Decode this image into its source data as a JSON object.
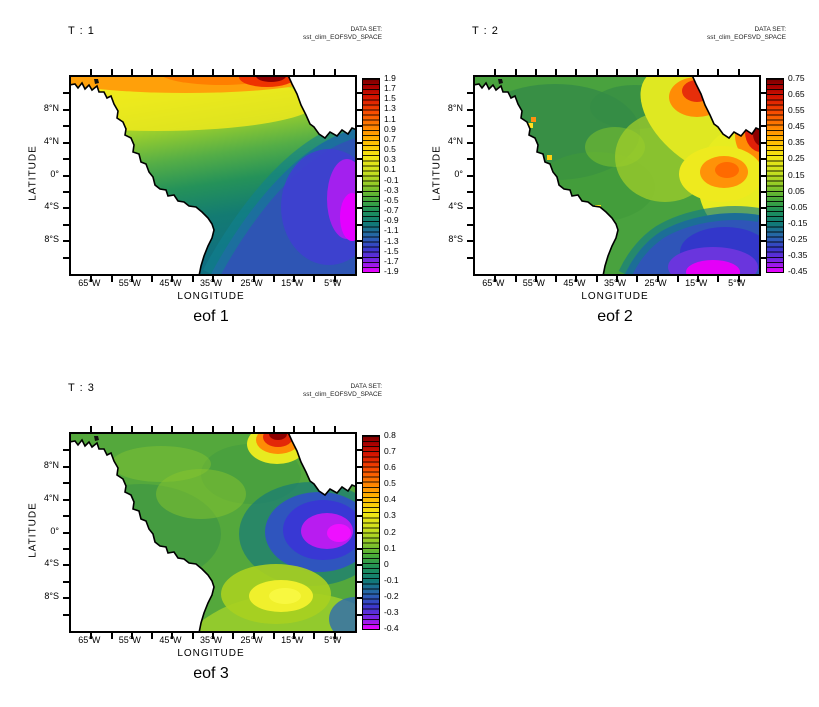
{
  "panels": [
    {
      "title": "T : 1",
      "dataset_label": "DATA SET:",
      "dataset_name": "sst_clim_EOFSVD_SPACE",
      "caption": "eof 1",
      "xlabel": "LONGITUDE",
      "ylabel": "LATITUDE",
      "x_ticks": [
        "65°W",
        "55°W",
        "45°W",
        "35°W",
        "25°W",
        "15°W",
        "5°W"
      ],
      "y_ticks": [
        "8°N",
        "4°N",
        "0°",
        "4°S",
        "8°S"
      ],
      "colorbar_labels": [
        "1.9",
        "1.7",
        "1.5",
        "1.3",
        "1.1",
        "0.9",
        "0.7",
        "0.5",
        "0.3",
        "0.1",
        "-0.1",
        "-0.3",
        "-0.5",
        "-0.7",
        "-0.9",
        "-1.1",
        "-1.3",
        "-1.5",
        "-1.7",
        "-1.9"
      ]
    },
    {
      "title": "T : 2",
      "dataset_label": "DATA SET:",
      "dataset_name": "sst_clim_EOFSVD_SPACE",
      "caption": "eof 2",
      "xlabel": "LONGITUDE",
      "ylabel": "LATITUDE",
      "x_ticks": [
        "65°W",
        "55°W",
        "45°W",
        "35°W",
        "25°W",
        "15°W",
        "5°W"
      ],
      "y_ticks": [
        "8°N",
        "4°N",
        "0°",
        "4°S",
        "8°S"
      ],
      "colorbar_labels": [
        "0.75",
        "0.65",
        "0.55",
        "0.45",
        "0.35",
        "0.25",
        "0.15",
        "0.05",
        "-0.05",
        "-0.15",
        "-0.25",
        "-0.35",
        "-0.45"
      ]
    },
    {
      "title": "T : 3",
      "dataset_label": "DATA SET:",
      "dataset_name": "sst_clim_EOFSVD_SPACE",
      "caption": "eof 3",
      "xlabel": "LONGITUDE",
      "ylabel": "LATITUDE",
      "x_ticks": [
        "65°W",
        "55°W",
        "45°W",
        "35°W",
        "25°W",
        "15°W",
        "5°W"
      ],
      "y_ticks": [
        "8°N",
        "4°N",
        "0°",
        "4°S",
        "8°S"
      ],
      "colorbar_labels": [
        "0.8",
        "0.7",
        "0.6",
        "0.5",
        "0.4",
        "0.3",
        "0.2",
        "0.1",
        "0",
        "-0.1",
        "-0.2",
        "-0.3",
        "-0.4"
      ]
    }
  ],
  "chart_data": [
    {
      "type": "heatmap",
      "title": "T : 1",
      "caption": "eof 1",
      "dataset": "sst_clim_EOFSVD_SPACE",
      "xlabel": "LONGITUDE",
      "ylabel": "LATITUDE",
      "x_tick_labels": [
        "65°W",
        "55°W",
        "45°W",
        "35°W",
        "25°W",
        "15°W",
        "5°W"
      ],
      "y_tick_labels": [
        "8°N",
        "4°N",
        "0°",
        "4°S",
        "8°S"
      ],
      "x_range": [
        "70°W",
        "0°"
      ],
      "y_range": [
        "12°S",
        "12°N"
      ],
      "colorbar": {
        "min": -1.9,
        "max": 1.9,
        "step": 0.2,
        "labels": [
          1.9,
          1.7,
          1.5,
          1.3,
          1.1,
          0.9,
          0.7,
          0.5,
          0.3,
          0.1,
          -0.1,
          -0.3,
          -0.5,
          -0.7,
          -0.9,
          -1.1,
          -1.3,
          -1.5,
          -1.7,
          -1.9
        ]
      },
      "palette": "rainbow: dark-red (max) → orange → yellow → green → teal → blue → magenta (min)",
      "features": [
        "positive band (yellow-orange ~0.9 to 1.3) along northern edge ~10-12°N",
        "maximum (dark red ~1.9) at top near 15°W by NW African coast",
        "zero-line green band crossing diagonally mid-basin",
        "broad negative pool (blue ~-1.0) over SE quadrant",
        "minimum (magenta ~-1.7 to -1.9) near 2-6°S at eastern edge"
      ]
    },
    {
      "type": "heatmap",
      "title": "T : 2",
      "caption": "eof 2",
      "dataset": "sst_clim_EOFSVD_SPACE",
      "xlabel": "LONGITUDE",
      "ylabel": "LATITUDE",
      "x_tick_labels": [
        "65°W",
        "55°W",
        "45°W",
        "35°W",
        "25°W",
        "15°W",
        "5°W"
      ],
      "y_tick_labels": [
        "8°N",
        "4°N",
        "0°",
        "4°S",
        "8°S"
      ],
      "x_range": [
        "70°W",
        "0°"
      ],
      "y_range": [
        "12°S",
        "12°N"
      ],
      "colorbar": {
        "min": -0.45,
        "max": 0.75,
        "step": 0.1,
        "labels": [
          0.75,
          0.65,
          0.55,
          0.45,
          0.35,
          0.25,
          0.15,
          0.05,
          -0.05,
          -0.15,
          -0.25,
          -0.35,
          -0.45
        ]
      },
      "palette": "rainbow: dark-red (max) → orange → yellow → green → teal → blue → magenta (min)",
      "features": [
        "mostly near-zero green over western/central basin",
        "positive maxima (red/orange ~0.55-0.75) near 15°W 10°N and at eastern edge ~4°N",
        "orange cell (~0.45) near 9°W 0°",
        "negative pool (blue) south of ~4°S east of 30°W",
        "minimum (magenta ~-0.45) near 12°S 12°W at bottom edge"
      ]
    },
    {
      "type": "heatmap",
      "title": "T : 3",
      "caption": "eof 3",
      "dataset": "sst_clim_EOFSVD_SPACE",
      "xlabel": "LONGITUDE",
      "ylabel": "LATITUDE",
      "x_tick_labels": [
        "65°W",
        "55°W",
        "45°W",
        "35°W",
        "25°W",
        "15°W",
        "5°W"
      ],
      "y_tick_labels": [
        "8°N",
        "4°N",
        "0°",
        "4°S",
        "8°S"
      ],
      "x_range": [
        "70°W",
        "0°"
      ],
      "y_range": [
        "12°S",
        "12°N"
      ],
      "colorbar": {
        "min": -0.4,
        "max": 0.8,
        "step": 0.1,
        "labels": [
          0.8,
          0.7,
          0.6,
          0.5,
          0.4,
          0.3,
          0.2,
          0.1,
          0,
          -0.1,
          -0.2,
          -0.3,
          -0.4
        ]
      },
      "palette": "rainbow: dark-red (max) → orange → yellow → green → teal → blue → magenta (min)",
      "features": [
        "mostly near-zero green field",
        "maximum (dark red ~0.8) at top edge near 19°W",
        "negative pool (blue) center-east ~0-2°S with magenta core (~-0.4) near 6°W",
        "positive yellow cell (~0.4) near 17°W 8°S",
        "yellow-green band along southern edge"
      ]
    }
  ]
}
